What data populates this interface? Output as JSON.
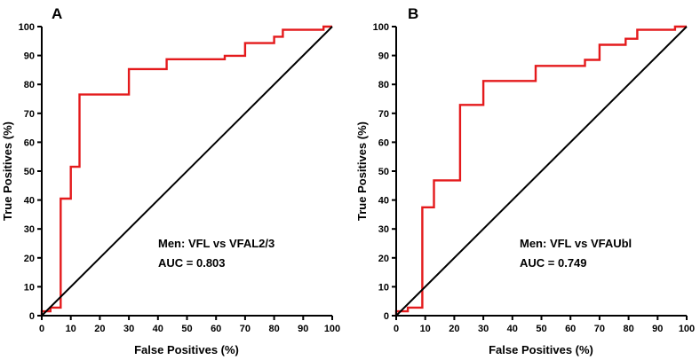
{
  "chart_data": [
    {
      "type": "line",
      "panel_label": "A",
      "title": "",
      "xlabel": "False Positives (%)",
      "ylabel": "True Positives (%)",
      "xlim": [
        0,
        100
      ],
      "ylim": [
        0,
        100
      ],
      "xticks": [
        "0",
        "10",
        "20",
        "30",
        "40",
        "50",
        "60",
        "70",
        "80",
        "90",
        "100"
      ],
      "yticks": [
        "0",
        "10",
        "20",
        "30",
        "40",
        "50",
        "60",
        "70",
        "80",
        "90",
        "100"
      ],
      "grid": false,
      "annotation_lines": [
        "Men: VFL vs VFAL2/3",
        "AUC = 0.803"
      ],
      "series": [
        {
          "name": "ROC curve",
          "color": "#e41a1c",
          "x": [
            0,
            0,
            3,
            3,
            6.5,
            6.5,
            10,
            10,
            13,
            13,
            30,
            30,
            43,
            43,
            63,
            63,
            70,
            70,
            80,
            80,
            83,
            83,
            97,
            97,
            100
          ],
          "y": [
            0,
            1.5,
            1.5,
            2.8,
            2.8,
            40.5,
            40.5,
            51.5,
            51.5,
            76.5,
            76.5,
            85.3,
            85.3,
            88.7,
            88.7,
            89.9,
            89.9,
            94.3,
            94.3,
            96.5,
            96.5,
            98.9,
            98.9,
            100,
            100
          ]
        },
        {
          "name": "Reference line",
          "color": "#000000",
          "x": [
            0,
            100
          ],
          "y": [
            0,
            100
          ]
        }
      ]
    },
    {
      "type": "line",
      "panel_label": "B",
      "title": "",
      "xlabel": "False Positives (%)",
      "ylabel": "True Positives (%)",
      "xlim": [
        0,
        100
      ],
      "ylim": [
        0,
        100
      ],
      "xticks": [
        "0",
        "10",
        "20",
        "30",
        "40",
        "50",
        "60",
        "70",
        "80",
        "90",
        "100"
      ],
      "yticks": [
        "0",
        "10",
        "20",
        "30",
        "40",
        "50",
        "60",
        "70",
        "80",
        "90",
        "100"
      ],
      "grid": false,
      "annotation_lines": [
        "Men: VFL vs VFAUbl",
        "AUC = 0.749"
      ],
      "series": [
        {
          "name": "ROC curve",
          "color": "#e41a1c",
          "x": [
            0,
            0,
            4,
            4,
            9,
            9,
            13,
            13,
            22,
            22,
            30,
            30,
            48,
            48,
            65,
            65,
            70,
            70,
            79,
            79,
            83,
            83,
            96,
            96,
            100
          ],
          "y": [
            0,
            1.5,
            1.5,
            2.8,
            2.8,
            37.5,
            37.5,
            46.8,
            46.8,
            72.9,
            72.9,
            81.2,
            81.2,
            86.4,
            86.4,
            88.5,
            88.5,
            93.7,
            93.7,
            95.8,
            95.8,
            98.9,
            98.9,
            100,
            100
          ]
        },
        {
          "name": "Reference line",
          "color": "#000000",
          "x": [
            0,
            100
          ],
          "y": [
            0,
            100
          ]
        }
      ]
    }
  ]
}
